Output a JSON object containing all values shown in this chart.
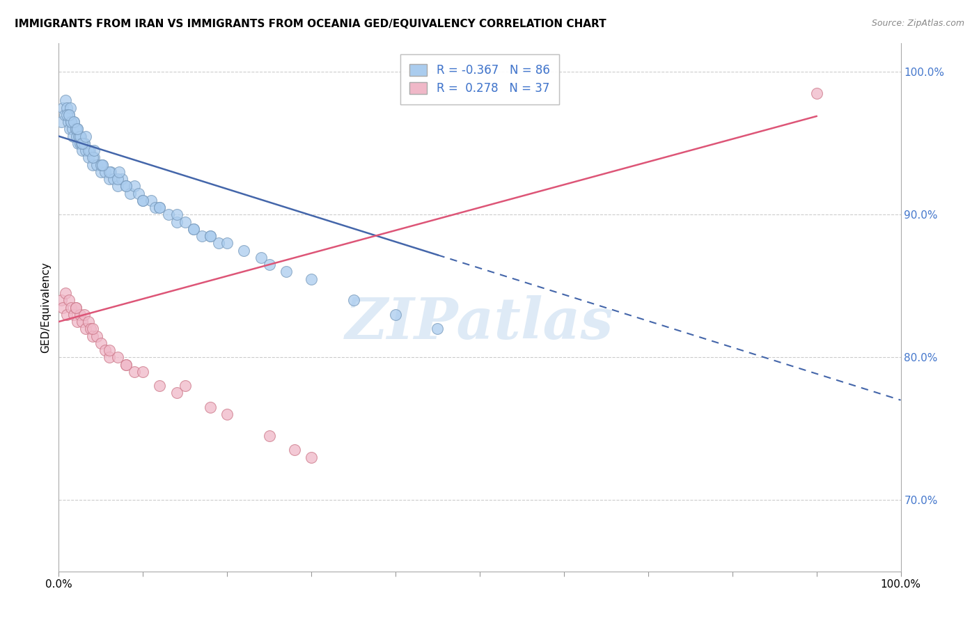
{
  "title": "IMMIGRANTS FROM IRAN VS IMMIGRANTS FROM OCEANIA GED/EQUIVALENCY CORRELATION CHART",
  "source": "Source: ZipAtlas.com",
  "ylabel": "GED/Equivalency",
  "legend_r1": "R = -0.367",
  "legend_n1": "N = 86",
  "legend_r2": "R =  0.278",
  "legend_n2": "N = 37",
  "color_iran": "#aaccee",
  "color_iran_edge": "#7799bb",
  "color_oceania": "#f0b8c8",
  "color_oceania_edge": "#cc7788",
  "color_blue_line": "#4466aa",
  "color_pink_line": "#dd5577",
  "color_r_value": "#4477cc",
  "color_grid": "#cccccc",
  "iran_x": [
    0.3,
    0.5,
    0.7,
    0.8,
    1.0,
    1.1,
    1.2,
    1.3,
    1.4,
    1.5,
    1.6,
    1.7,
    1.8,
    2.0,
    2.1,
    2.2,
    2.3,
    2.4,
    2.5,
    2.6,
    2.7,
    2.8,
    3.0,
    3.2,
    3.5,
    3.7,
    4.0,
    4.2,
    4.5,
    5.0,
    5.2,
    5.5,
    6.0,
    6.2,
    6.5,
    7.0,
    7.5,
    8.0,
    8.5,
    9.0,
    9.5,
    10.0,
    11.0,
    11.5,
    12.0,
    13.0,
    14.0,
    15.0,
    16.0,
    17.0,
    18.0,
    19.0,
    20.0,
    22.0,
    24.0,
    25.0,
    27.0,
    30.0,
    35.0,
    40.0,
    45.0,
    1.0,
    1.5,
    2.0,
    2.5,
    3.0,
    3.5,
    4.0,
    5.0,
    6.0,
    7.0,
    8.0,
    10.0,
    12.0,
    14.0,
    16.0,
    18.0,
    1.2,
    1.8,
    2.2,
    2.8,
    3.2,
    4.2,
    5.2,
    7.2
  ],
  "iran_y": [
    96.5,
    97.5,
    97.0,
    98.0,
    97.5,
    96.5,
    97.0,
    96.0,
    97.5,
    96.5,
    96.0,
    95.5,
    96.5,
    96.0,
    95.5,
    96.0,
    95.0,
    95.5,
    95.0,
    95.5,
    95.0,
    94.5,
    95.0,
    94.5,
    94.0,
    94.5,
    93.5,
    94.0,
    93.5,
    93.0,
    93.5,
    93.0,
    92.5,
    93.0,
    92.5,
    92.0,
    92.5,
    92.0,
    91.5,
    92.0,
    91.5,
    91.0,
    91.0,
    90.5,
    90.5,
    90.0,
    89.5,
    89.5,
    89.0,
    88.5,
    88.5,
    88.0,
    88.0,
    87.5,
    87.0,
    86.5,
    86.0,
    85.5,
    84.0,
    83.0,
    82.0,
    97.0,
    96.5,
    96.0,
    95.5,
    95.0,
    94.5,
    94.0,
    93.5,
    93.0,
    92.5,
    92.0,
    91.0,
    90.5,
    90.0,
    89.0,
    88.5,
    97.0,
    96.5,
    96.0,
    95.0,
    95.5,
    94.5,
    93.5,
    93.0
  ],
  "oceania_x": [
    0.3,
    0.5,
    0.8,
    1.0,
    1.2,
    1.5,
    1.8,
    2.0,
    2.2,
    2.5,
    2.8,
    3.0,
    3.2,
    3.5,
    3.8,
    4.0,
    4.5,
    5.0,
    5.5,
    6.0,
    7.0,
    8.0,
    9.0,
    10.0,
    12.0,
    14.0,
    15.0,
    18.0,
    20.0,
    25.0,
    28.0,
    30.0,
    2.0,
    4.0,
    6.0,
    8.0,
    90.0
  ],
  "oceania_y": [
    84.0,
    83.5,
    84.5,
    83.0,
    84.0,
    83.5,
    83.0,
    83.5,
    82.5,
    83.0,
    82.5,
    83.0,
    82.0,
    82.5,
    82.0,
    81.5,
    81.5,
    81.0,
    80.5,
    80.0,
    80.0,
    79.5,
    79.0,
    79.0,
    78.0,
    77.5,
    78.0,
    76.5,
    76.0,
    74.5,
    73.5,
    73.0,
    83.5,
    82.0,
    80.5,
    79.5,
    98.5
  ],
  "xlim": [
    0,
    100
  ],
  "ylim": [
    65,
    102
  ],
  "iran_line_start_x": 0,
  "iran_line_start_y": 95.5,
  "iran_line_end_x": 100,
  "iran_line_end_y": 77.0,
  "iran_solid_end_x": 45,
  "oceania_line_start_x": 0,
  "oceania_line_start_y": 82.5,
  "oceania_line_end_x": 100,
  "oceania_line_end_y": 98.5,
  "oceania_solid_end_x": 90,
  "watermark": "ZIPatlas",
  "watermark_color": "#c8ddf0"
}
